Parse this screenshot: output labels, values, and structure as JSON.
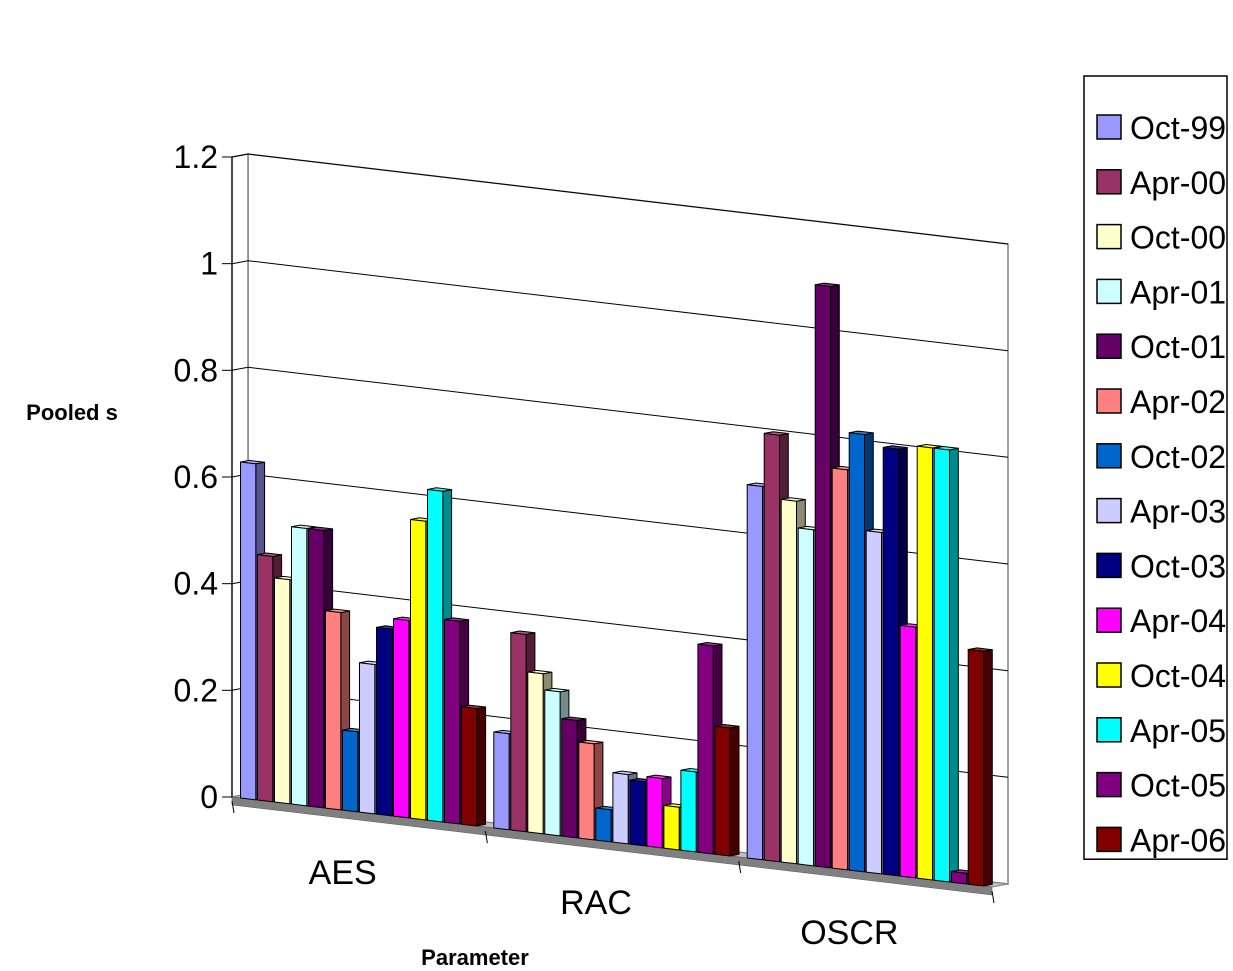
{
  "chart_data": {
    "type": "bar",
    "title": "",
    "xlabel": "Parameter",
    "ylabel": "Pooled s",
    "ylim": [
      0,
      1.2
    ],
    "yticks": [
      0,
      0.2,
      0.4,
      0.6,
      0.8,
      1,
      1.2
    ],
    "ytick_labels": [
      "0",
      "0.2",
      "0.4",
      "0.6",
      "0.8",
      "1",
      "1.2"
    ],
    "grid": true,
    "legend_position": "right",
    "categories": [
      "AES",
      "RAC",
      "OSCR"
    ],
    "series": [
      {
        "name": "Oct-99",
        "color": "#9999FF",
        "values": [
          0.63,
          0.18,
          0.7
        ]
      },
      {
        "name": "Apr-00",
        "color": "#993366",
        "values": [
          0.46,
          0.37,
          0.8
        ]
      },
      {
        "name": "Oct-00",
        "color": "#FFFFCC",
        "values": [
          0.42,
          0.3,
          0.68
        ]
      },
      {
        "name": "Apr-01",
        "color": "#CCFFFF",
        "values": [
          0.52,
          0.27,
          0.63
        ]
      },
      {
        "name": "Oct-01",
        "color": "#660066",
        "values": [
          0.52,
          0.22,
          1.09
        ]
      },
      {
        "name": "Apr-02",
        "color": "#FF8080",
        "values": [
          0.37,
          0.18,
          0.75
        ]
      },
      {
        "name": "Oct-02",
        "color": "#0066CC",
        "values": [
          0.15,
          0.06,
          0.82
        ]
      },
      {
        "name": "Apr-03",
        "color": "#CCCCFF",
        "values": [
          0.28,
          0.13,
          0.64
        ]
      },
      {
        "name": "Oct-03",
        "color": "#000080",
        "values": [
          0.35,
          0.12,
          0.8
        ]
      },
      {
        "name": "Apr-04",
        "color": "#FF00FF",
        "values": [
          0.37,
          0.13,
          0.47
        ]
      },
      {
        "name": "Oct-04",
        "color": "#FFFF00",
        "values": [
          0.56,
          0.08,
          0.81
        ]
      },
      {
        "name": "Apr-05",
        "color": "#00FFFF",
        "values": [
          0.62,
          0.15,
          0.81
        ]
      },
      {
        "name": "Oct-05",
        "color": "#800080",
        "values": [
          0.38,
          0.39,
          0.02
        ]
      },
      {
        "name": "Apr-06",
        "color": "#800000",
        "values": [
          0.22,
          0.24,
          0.44
        ]
      }
    ]
  }
}
